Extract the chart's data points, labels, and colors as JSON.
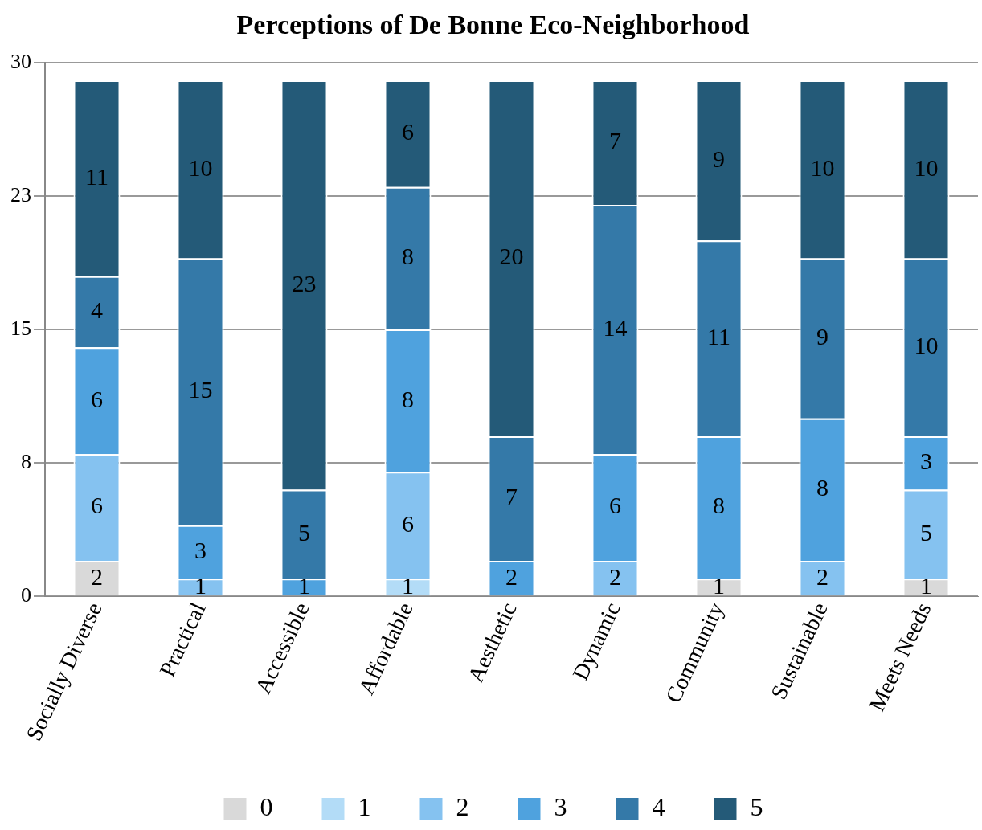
{
  "chart_data": {
    "type": "bar",
    "title": "Perceptions of De Bonne Eco-Neighborhood",
    "stacked": true,
    "categories": [
      "Socially Diverse",
      "Practical",
      "Accessible",
      "Affordable",
      "Aesthetic",
      "Dynamic",
      "Community",
      "Sustainable",
      "Meets Needs"
    ],
    "series": [
      {
        "name": "0",
        "color": "#d9d9d9",
        "values": [
          2,
          null,
          null,
          null,
          null,
          null,
          1,
          null,
          1
        ]
      },
      {
        "name": "1",
        "color": "#b3dcf7",
        "values": [
          null,
          null,
          null,
          1,
          null,
          null,
          null,
          null,
          null
        ]
      },
      {
        "name": "2",
        "color": "#85c2f0",
        "values": [
          6,
          1,
          null,
          6,
          null,
          2,
          null,
          2,
          5
        ]
      },
      {
        "name": "3",
        "color": "#4fa2de",
        "values": [
          6,
          3,
          1,
          8,
          2,
          6,
          8,
          8,
          3
        ]
      },
      {
        "name": "4",
        "color": "#3479a8",
        "values": [
          4,
          15,
          5,
          8,
          7,
          14,
          11,
          9,
          10
        ]
      },
      {
        "name": "5",
        "color": "#245a78",
        "values": [
          11,
          10,
          23,
          6,
          20,
          7,
          9,
          10,
          10
        ]
      }
    ],
    "ylim": [
      0,
      30
    ],
    "yticks": [
      0,
      {
        "value": 7.5,
        "label": "8"
      },
      15,
      {
        "value": 22.5,
        "label": "23"
      },
      30
    ],
    "grid": "y",
    "legend": "bottom",
    "data_labels": true
  }
}
